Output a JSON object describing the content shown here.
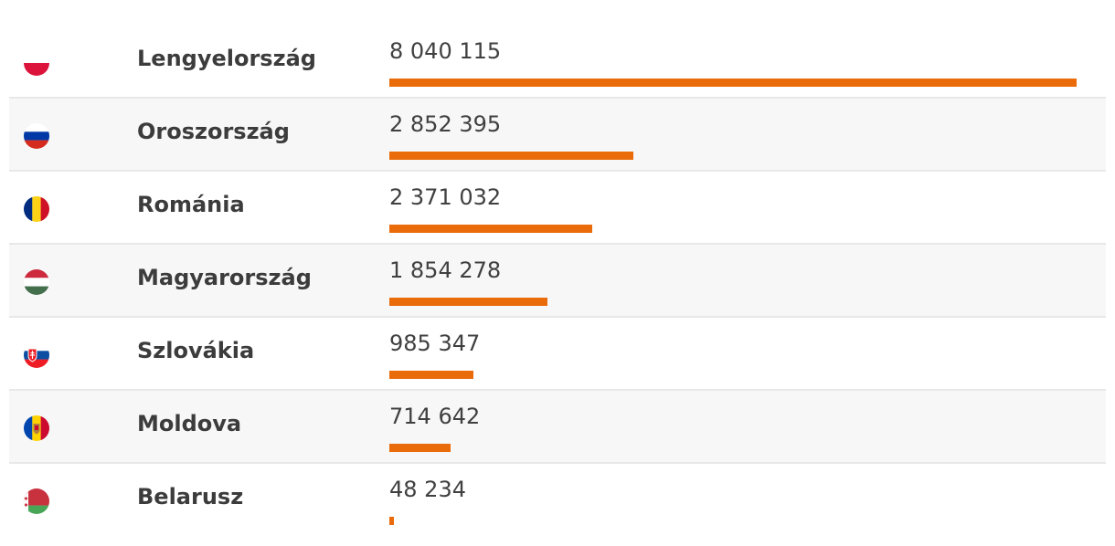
{
  "chart_data": {
    "type": "bar",
    "orientation": "horizontal",
    "categories": [
      "Lengyelország",
      "Oroszország",
      "Románia",
      "Magyarország",
      "Szlovákia",
      "Moldova",
      "Belarusz"
    ],
    "values": [
      8040115,
      2852395,
      2371032,
      1854278,
      985347,
      714642,
      48234
    ],
    "value_labels": [
      "8 040 115",
      "2 852 395",
      "2 371 032",
      "1 854 278",
      "985 347",
      "714 642",
      "48 234"
    ],
    "flags": [
      "poland-flag-icon",
      "russia-flag-icon",
      "romania-flag-icon",
      "hungary-flag-icon",
      "slovakia-flag-icon",
      "moldova-flag-icon",
      "belarus-flag-icon"
    ],
    "xlim": [
      0,
      8040115
    ],
    "bar_color": "#ea6b0a",
    "grid": false
  }
}
